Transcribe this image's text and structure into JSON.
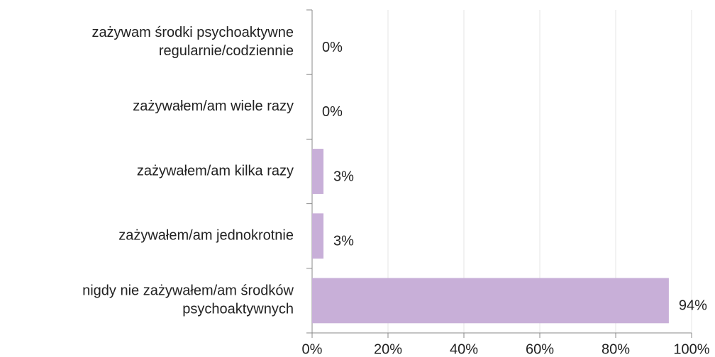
{
  "chart_data": {
    "type": "bar",
    "orientation": "horizontal",
    "categories": [
      [
        "zażywam środki psychoaktywne",
        "regularnie/codziennie"
      ],
      [
        "zażywałem/am wiele razy"
      ],
      [
        "zażywałem/am kilka razy"
      ],
      [
        "zażywałem/am jednokrotnie"
      ],
      [
        "nigdy nie zażywałem/am środków",
        "psychoaktywnych"
      ]
    ],
    "values": [
      0,
      0,
      3,
      3,
      94
    ],
    "value_labels": [
      "0%",
      "0%",
      "3%",
      "3%",
      "94%"
    ],
    "color": "#c8afd8",
    "xlim": [
      0,
      100
    ],
    "xticks": [
      {
        "value": 0,
        "label": "0%"
      },
      {
        "value": 20,
        "label": "20%"
      },
      {
        "value": 40,
        "label": "40%"
      },
      {
        "value": 60,
        "label": "60%"
      },
      {
        "value": 80,
        "label": "80%"
      },
      {
        "value": 100,
        "label": "100%"
      }
    ],
    "grid": true
  }
}
